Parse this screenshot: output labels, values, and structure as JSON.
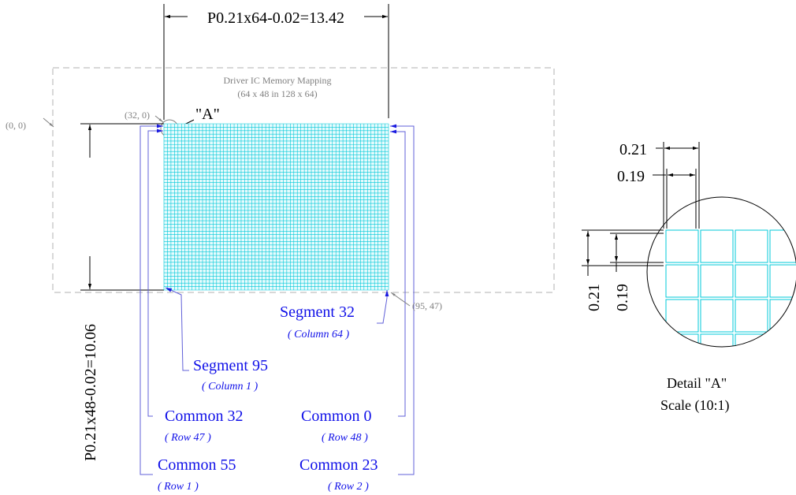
{
  "colors": {
    "grid": "#00c8d8",
    "grid_fill": "#e6fbfd",
    "label_blue": "#1010e8",
    "leader_blue": "#6060d8",
    "dim_black": "#000000",
    "boundary_grey": "#b0b0b0",
    "grey_text": "#808080"
  },
  "dimensions": {
    "width_label": "P0.21x64-0.02=13.42",
    "height_label": "P0.21x48-0.02=10.06"
  },
  "memory_mapping": {
    "title": "Driver IC Memory Mapping",
    "subtitle": "(64 x 48 in 128 x 64)"
  },
  "coordinates": {
    "origin": "(0, 0)",
    "start": "(32, 0)",
    "end": "(95, 47)"
  },
  "detail_marker": "\"A\"",
  "pins": {
    "seg32": {
      "label": "Segment 32",
      "sub_open": "( ",
      "sub_italic": "Column 64",
      "sub_close": " )"
    },
    "seg95": {
      "label": "Segment 95",
      "sub_open": "( ",
      "sub_italic": "Column 1",
      "sub_close": " )"
    },
    "com32": {
      "label": "Common 32",
      "sub_open": "( ",
      "sub_italic": "Row 47",
      "sub_close": " )"
    },
    "com0": {
      "label": "Common 0",
      "sub_open": "( ",
      "sub_italic": "Row 48",
      "sub_close": " )"
    },
    "com55": {
      "label": "Common 55",
      "sub_open": "( ",
      "sub_italic": "Row 1",
      "sub_close": " )"
    },
    "com23": {
      "label": "Common 23",
      "sub_open": "( ",
      "sub_italic": "Row 2",
      "sub_close": " )"
    }
  },
  "grid": {
    "columns": 64,
    "rows": 48
  },
  "detail": {
    "pitch_h": "0.21",
    "dot_h": "0.19",
    "pitch_v": "0.21",
    "dot_v": "0.19",
    "title": "Detail \"A\"",
    "scale": "Scale (10:1)"
  }
}
